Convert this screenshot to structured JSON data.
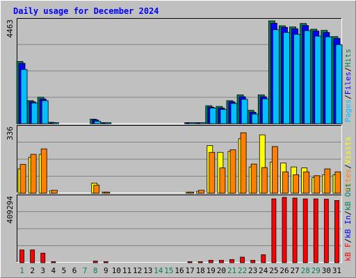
{
  "chart_data": {
    "type": "bar",
    "title": "Daily usage for December 2024",
    "categories": [
      "1",
      "2",
      "3",
      "4",
      "5",
      "6",
      "7",
      "8",
      "9",
      "10",
      "11",
      "12",
      "13",
      "14",
      "15",
      "16",
      "17",
      "18",
      "19",
      "20",
      "21",
      "22",
      "23",
      "24",
      "25",
      "26",
      "27",
      "28",
      "29",
      "30",
      "31"
    ],
    "weekend_days": [
      "1",
      "7",
      "8",
      "14",
      "15",
      "21",
      "22",
      "28",
      "29"
    ],
    "grid": true,
    "colors": {
      "hits": "#00805c",
      "files": "#0000ff",
      "pages": "#00c0ff",
      "visits": "#ffff00",
      "sites": "#ff8000",
      "kbin": "#0000ff",
      "kbout": "#00805c",
      "kbf": "#ff0000",
      "title": "#0000ff",
      "weekend": "#00805c",
      "weekday": "#000000",
      "plot_bg": "#c0c0c0",
      "frame_bg": "#c0c0c0"
    },
    "panels": [
      {
        "id": "hits",
        "ymax_label": "4463",
        "ymax": 4463,
        "right_label": [
          "Pages",
          "Files",
          "Hits"
        ],
        "right_label_colors": [
          "#00c0ff",
          "#0000ff",
          "#00805c"
        ],
        "series": [
          {
            "name": "Hits",
            "color": "#00805c",
            "values": [
              2700,
              1000,
              1150,
              60,
              0,
              0,
              0,
              200,
              35,
              0,
              0,
              0,
              0,
              0,
              0,
              0,
              30,
              45,
              780,
              750,
              1000,
              1250,
              580,
              1250,
              4463,
              4250,
              4200,
              4350,
              4100,
              4050,
              3780
            ]
          },
          {
            "name": "Files",
            "color": "#0000ff",
            "values": [
              2620,
              950,
              1070,
              40,
              0,
              0,
              0,
              160,
              25,
              0,
              0,
              0,
              0,
              0,
              0,
              0,
              22,
              35,
              720,
              680,
              950,
              1170,
              500,
              1170,
              4360,
              4180,
              4120,
              4260,
              4020,
              3960,
              3700
            ]
          },
          {
            "name": "Pages",
            "color": "#00c0ff",
            "values": [
              2350,
              900,
              1000,
              20,
              0,
              0,
              0,
              110,
              10,
              0,
              0,
              0,
              0,
              0,
              0,
              0,
              8,
              18,
              680,
              620,
              880,
              1060,
              420,
              1080,
              4080,
              3960,
              3880,
              4040,
              3800,
              3770,
              3430
            ]
          }
        ]
      },
      {
        "id": "visits",
        "ymax_label": "336",
        "ymax": 336,
        "right_label": [
          "Sites",
          "Visits"
        ],
        "right_label_colors": [
          "#ff8000",
          "#ffff00"
        ],
        "series": [
          {
            "name": "Visits",
            "color": "#ffff00",
            "values": [
              125,
              185,
              200,
              12,
              0,
              0,
              0,
              52,
              6,
              0,
              0,
              0,
              0,
              0,
              0,
              0,
              6,
              10,
              245,
              210,
              215,
              280,
              135,
              300,
              160,
              155,
              135,
              130,
              80,
              95,
              95
            ]
          },
          {
            "name": "Sites",
            "color": "#ff8000",
            "values": [
              148,
              200,
              228,
              15,
              0,
              0,
              0,
              42,
              6,
              0,
              0,
              0,
              0,
              0,
              0,
              0,
              6,
              15,
              210,
              130,
              223,
              311,
              150,
              132,
              240,
              110,
              95,
              110,
              90,
              125,
              110
            ]
          }
        ]
      },
      {
        "id": "kbytes",
        "ymax_label": "409294",
        "ymax": 409294,
        "right_label": [
          "kB F",
          "kB In",
          "kB Out"
        ],
        "right_label_colors": [
          "#ff0000",
          "#0000ff",
          "#00805c"
        ],
        "series": [
          {
            "name": "kB F",
            "color": "#ff0000",
            "values": [
              80000,
              80000,
              60000,
              5000,
              0,
              0,
              0,
              10000,
              5000,
              0,
              0,
              0,
              0,
              0,
              0,
              0,
              4000,
              4000,
              15000,
              15000,
              20000,
              35000,
              15000,
              50000,
              400000,
              409294,
              405000,
              400000,
              400000,
              398000,
              390000
            ]
          }
        ]
      }
    ]
  }
}
